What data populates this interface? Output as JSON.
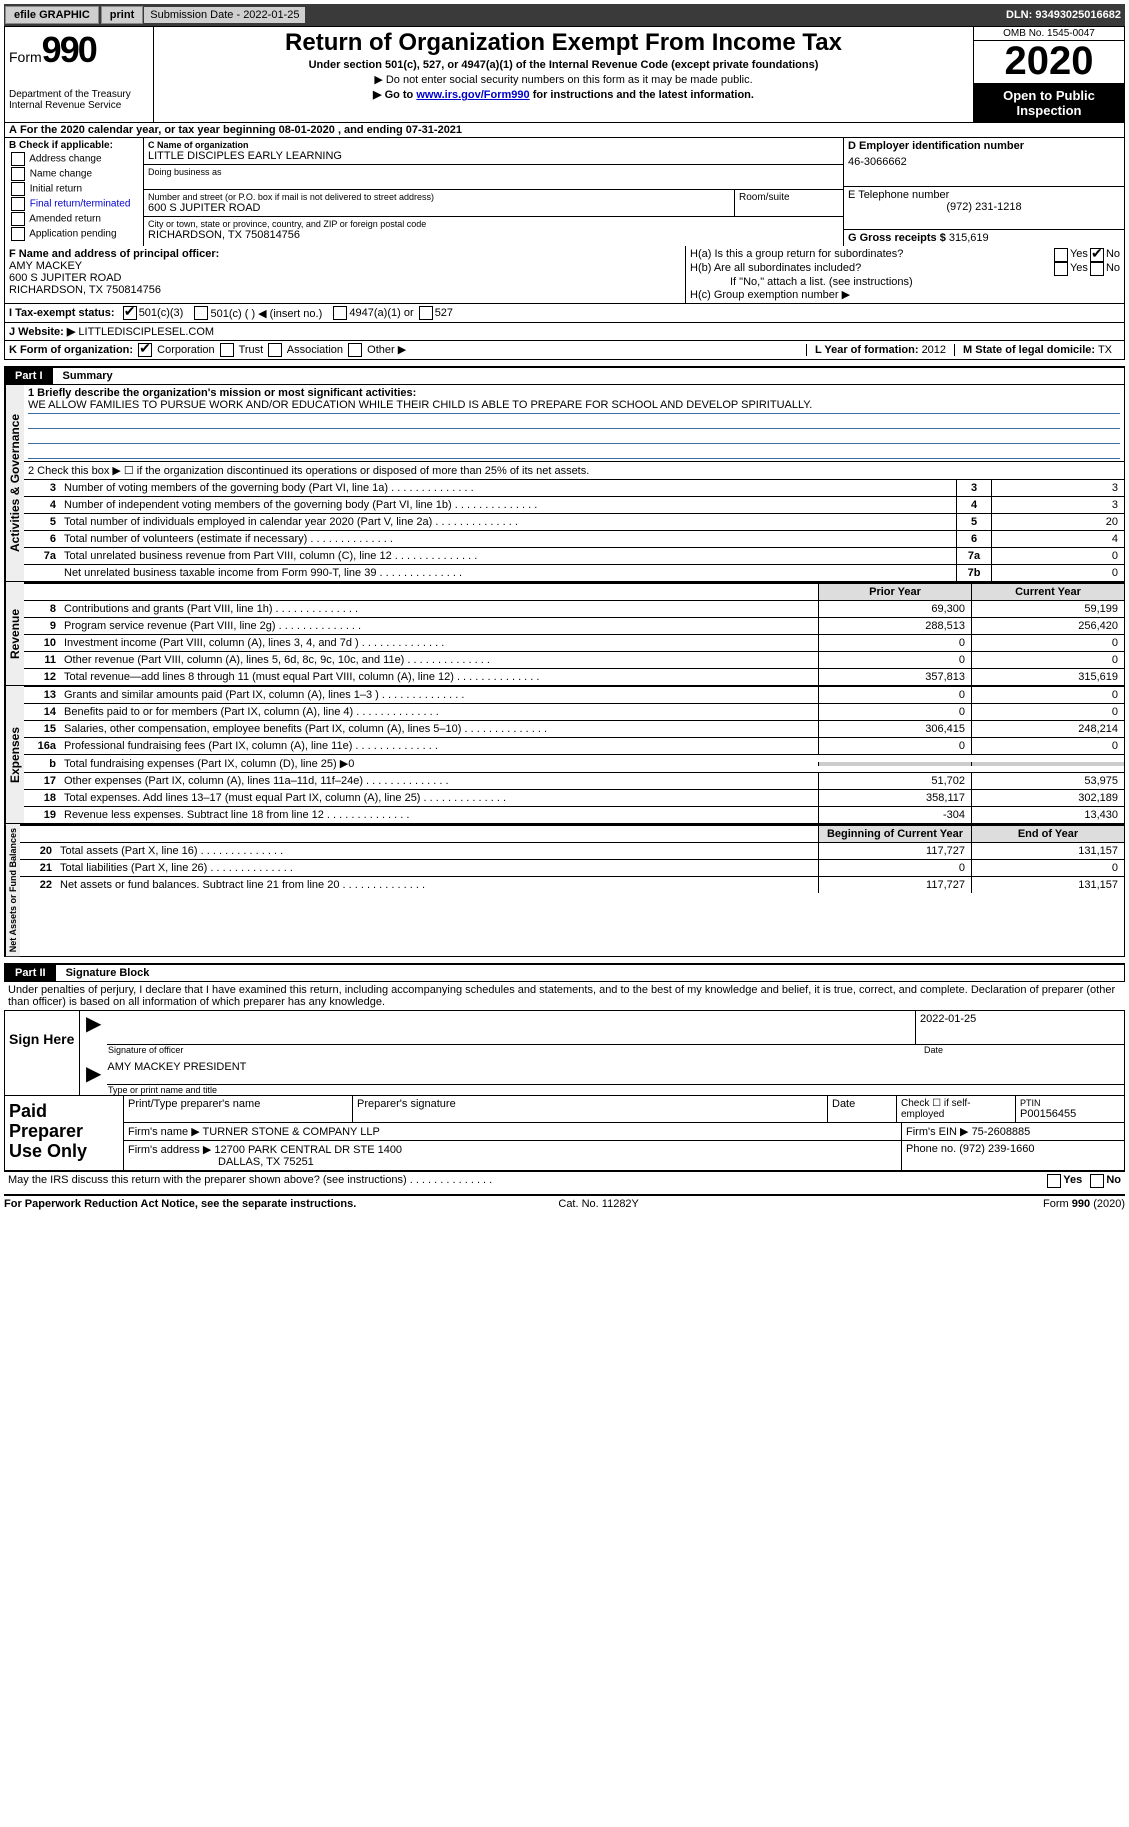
{
  "topbar": {
    "efile": "efile GRAPHIC",
    "print": "print",
    "sub_label": "Submission Date - ",
    "sub_date": "2022-01-25",
    "dln_label": "DLN: ",
    "dln": "93493025016682"
  },
  "header": {
    "form_label": "Form",
    "form_num": "990",
    "dept": "Department of the Treasury",
    "irs": "Internal Revenue Service",
    "title": "Return of Organization Exempt From Income Tax",
    "sub1": "Under section 501(c), 527, or 4947(a)(1) of the Internal Revenue Code (except private foundations)",
    "sub2": "▶ Do not enter social security numbers on this form as it may be made public.",
    "sub3_pre": "▶ Go to ",
    "sub3_link": "www.irs.gov/Form990",
    "sub3_post": " for instructions and the latest information.",
    "omb": "OMB No. 1545-0047",
    "year": "2020",
    "otp": "Open to Public Inspection"
  },
  "row_a": "For the 2020 calendar year, or tax year beginning 08-01-2020   , and ending 07-31-2021",
  "col_b": {
    "label": "B Check if applicable:",
    "items": [
      "Address change",
      "Name change",
      "Initial return",
      "Final return/terminated",
      "Amended return",
      "Application pending"
    ]
  },
  "col_c": {
    "name_label": "C Name of organization",
    "name": "LITTLE DISCIPLES EARLY LEARNING",
    "dba_label": "Doing business as",
    "addr_label": "Number and street (or P.O. box if mail is not delivered to street address)",
    "room_label": "Room/suite",
    "addr": "600 S JUPITER ROAD",
    "city_label": "City or town, state or province, country, and ZIP or foreign postal code",
    "city": "RICHARDSON, TX  750814756"
  },
  "col_d": {
    "label": "D Employer identification number",
    "val": "46-3066662"
  },
  "col_e": {
    "label": "E Telephone number",
    "val": "(972) 231-1218"
  },
  "col_g": {
    "label": "G Gross receipts $",
    "val": "315,619"
  },
  "col_f": {
    "label": "F Name and address of principal officer:",
    "name": "AMY MACKEY",
    "l1": "600 S JUPITER ROAD",
    "l2": "RICHARDSON, TX  750814756"
  },
  "col_h": {
    "a_label": "H(a)  Is this a group return for subordinates?",
    "b_label": "H(b)  Are all subordinates included?",
    "note": "If \"No,\" attach a list. (see instructions)",
    "c_label": "H(c)  Group exemption number ▶",
    "yes": "Yes",
    "no": "No"
  },
  "row_i": {
    "label": "I   Tax-exempt status:",
    "o1": "501(c)(3)",
    "o2": "501(c) (  ) ◀ (insert no.)",
    "o3": "4947(a)(1) or",
    "o4": "527"
  },
  "row_j": {
    "label": "J   Website: ▶",
    "val": "LITTLEDISCIPLESEL.COM"
  },
  "row_k": {
    "label": "K Form of organization:",
    "o1": "Corporation",
    "o2": "Trust",
    "o3": "Association",
    "o4": "Other ▶",
    "l_label": "L Year of formation:",
    "l_val": "2012",
    "m_label": "M State of legal domicile:",
    "m_val": "TX"
  },
  "part1": {
    "hdr": "Part I",
    "ttl": "Summary"
  },
  "s1": {
    "q1_label": "1   Briefly describe the organization's mission or most significant activities:",
    "q1_text": "WE ALLOW FAMILIES TO PURSUE WORK AND/OR EDUCATION WHILE THEIR CHILD IS ABLE TO PREPARE FOR SCHOOL AND DEVELOP SPIRITUALLY.",
    "q2": "2   Check this box ▶ ☐  if the organization discontinued its operations or disposed of more than 25% of its net assets.",
    "rows_gov": [
      {
        "n": "3",
        "t": "Number of voting members of the governing body (Part VI, line 1a)",
        "box": "3",
        "v": "3"
      },
      {
        "n": "4",
        "t": "Number of independent voting members of the governing body (Part VI, line 1b)",
        "box": "4",
        "v": "3"
      },
      {
        "n": "5",
        "t": "Total number of individuals employed in calendar year 2020 (Part V, line 2a)",
        "box": "5",
        "v": "20"
      },
      {
        "n": "6",
        "t": "Total number of volunteers (estimate if necessary)",
        "box": "6",
        "v": "4"
      },
      {
        "n": "7a",
        "t": "Total unrelated business revenue from Part VIII, column (C), line 12",
        "box": "7a",
        "v": "0"
      },
      {
        "n": "",
        "t": "Net unrelated business taxable income from Form 990-T, line 39",
        "box": "7b",
        "v": "0"
      }
    ],
    "col_hdr_prior": "Prior Year",
    "col_hdr_curr": "Current Year",
    "rev": [
      {
        "n": "8",
        "t": "Contributions and grants (Part VIII, line 1h)",
        "p": "69,300",
        "c": "59,199"
      },
      {
        "n": "9",
        "t": "Program service revenue (Part VIII, line 2g)",
        "p": "288,513",
        "c": "256,420"
      },
      {
        "n": "10",
        "t": "Investment income (Part VIII, column (A), lines 3, 4, and 7d )",
        "p": "0",
        "c": "0"
      },
      {
        "n": "11",
        "t": "Other revenue (Part VIII, column (A), lines 5, 6d, 8c, 9c, 10c, and 11e)",
        "p": "0",
        "c": "0"
      },
      {
        "n": "12",
        "t": "Total revenue—add lines 8 through 11 (must equal Part VIII, column (A), line 12)",
        "p": "357,813",
        "c": "315,619"
      }
    ],
    "exp": [
      {
        "n": "13",
        "t": "Grants and similar amounts paid (Part IX, column (A), lines 1–3 )",
        "p": "0",
        "c": "0"
      },
      {
        "n": "14",
        "t": "Benefits paid to or for members (Part IX, column (A), line 4)",
        "p": "0",
        "c": "0"
      },
      {
        "n": "15",
        "t": "Salaries, other compensation, employee benefits (Part IX, column (A), lines 5–10)",
        "p": "306,415",
        "c": "248,214"
      },
      {
        "n": "16a",
        "t": "Professional fundraising fees (Part IX, column (A), line 11e)",
        "p": "0",
        "c": "0"
      },
      {
        "n": "b",
        "t": "Total fundraising expenses (Part IX, column (D), line 25) ▶0",
        "p": "",
        "c": "",
        "shade": true
      },
      {
        "n": "17",
        "t": "Other expenses (Part IX, column (A), lines 11a–11d, 11f–24e)",
        "p": "51,702",
        "c": "53,975"
      },
      {
        "n": "18",
        "t": "Total expenses. Add lines 13–17 (must equal Part IX, column (A), line 25)",
        "p": "358,117",
        "c": "302,189"
      },
      {
        "n": "19",
        "t": "Revenue less expenses. Subtract line 18 from line 12",
        "p": "-304",
        "c": "13,430"
      }
    ],
    "na_hdr_b": "Beginning of Current Year",
    "na_hdr_e": "End of Year",
    "na": [
      {
        "n": "20",
        "t": "Total assets (Part X, line 16)",
        "p": "117,727",
        "c": "131,157"
      },
      {
        "n": "21",
        "t": "Total liabilities (Part X, line 26)",
        "p": "0",
        "c": "0"
      },
      {
        "n": "22",
        "t": "Net assets or fund balances. Subtract line 21 from line 20",
        "p": "117,727",
        "c": "131,157"
      }
    ],
    "vtab_gov": "Activities & Governance",
    "vtab_rev": "Revenue",
    "vtab_exp": "Expenses",
    "vtab_na": "Net Assets or Fund Balances"
  },
  "part2": {
    "hdr": "Part II",
    "ttl": "Signature Block",
    "decl": "Under penalties of perjury, I declare that I have examined this return, including accompanying schedules and statements, and to the best of my knowledge and belief, it is true, correct, and complete. Declaration of preparer (other than officer) is based on all information of which preparer has any knowledge."
  },
  "sign": {
    "here": "Sign Here",
    "sig_label": "Signature of officer",
    "date_label": "Date",
    "date": "2022-01-25",
    "name": "AMY MACKEY PRESIDENT",
    "name_label": "Type or print name and title"
  },
  "paid": {
    "title": "Paid Preparer Use Only",
    "h1": "Print/Type preparer's name",
    "h2": "Preparer's signature",
    "h3": "Date",
    "h4_pre": "Check ☐ if self-employed",
    "h5": "PTIN",
    "ptin": "P00156455",
    "firm_label": "Firm's name   ▶",
    "firm": "TURNER STONE & COMPANY LLP",
    "ein_label": "Firm's EIN ▶",
    "ein": "75-2608885",
    "addr_label": "Firm's address ▶",
    "addr1": "12700 PARK CENTRAL DR STE 1400",
    "addr2": "DALLAS, TX  75251",
    "phone_label": "Phone no.",
    "phone": "(972) 239-1660",
    "discuss": "May the IRS discuss this return with the preparer shown above? (see instructions)",
    "yes": "Yes",
    "no": "No"
  },
  "footer": {
    "l": "For Paperwork Reduction Act Notice, see the separate instructions.",
    "m": "Cat. No. 11282Y",
    "r": "Form 990 (2020)"
  }
}
